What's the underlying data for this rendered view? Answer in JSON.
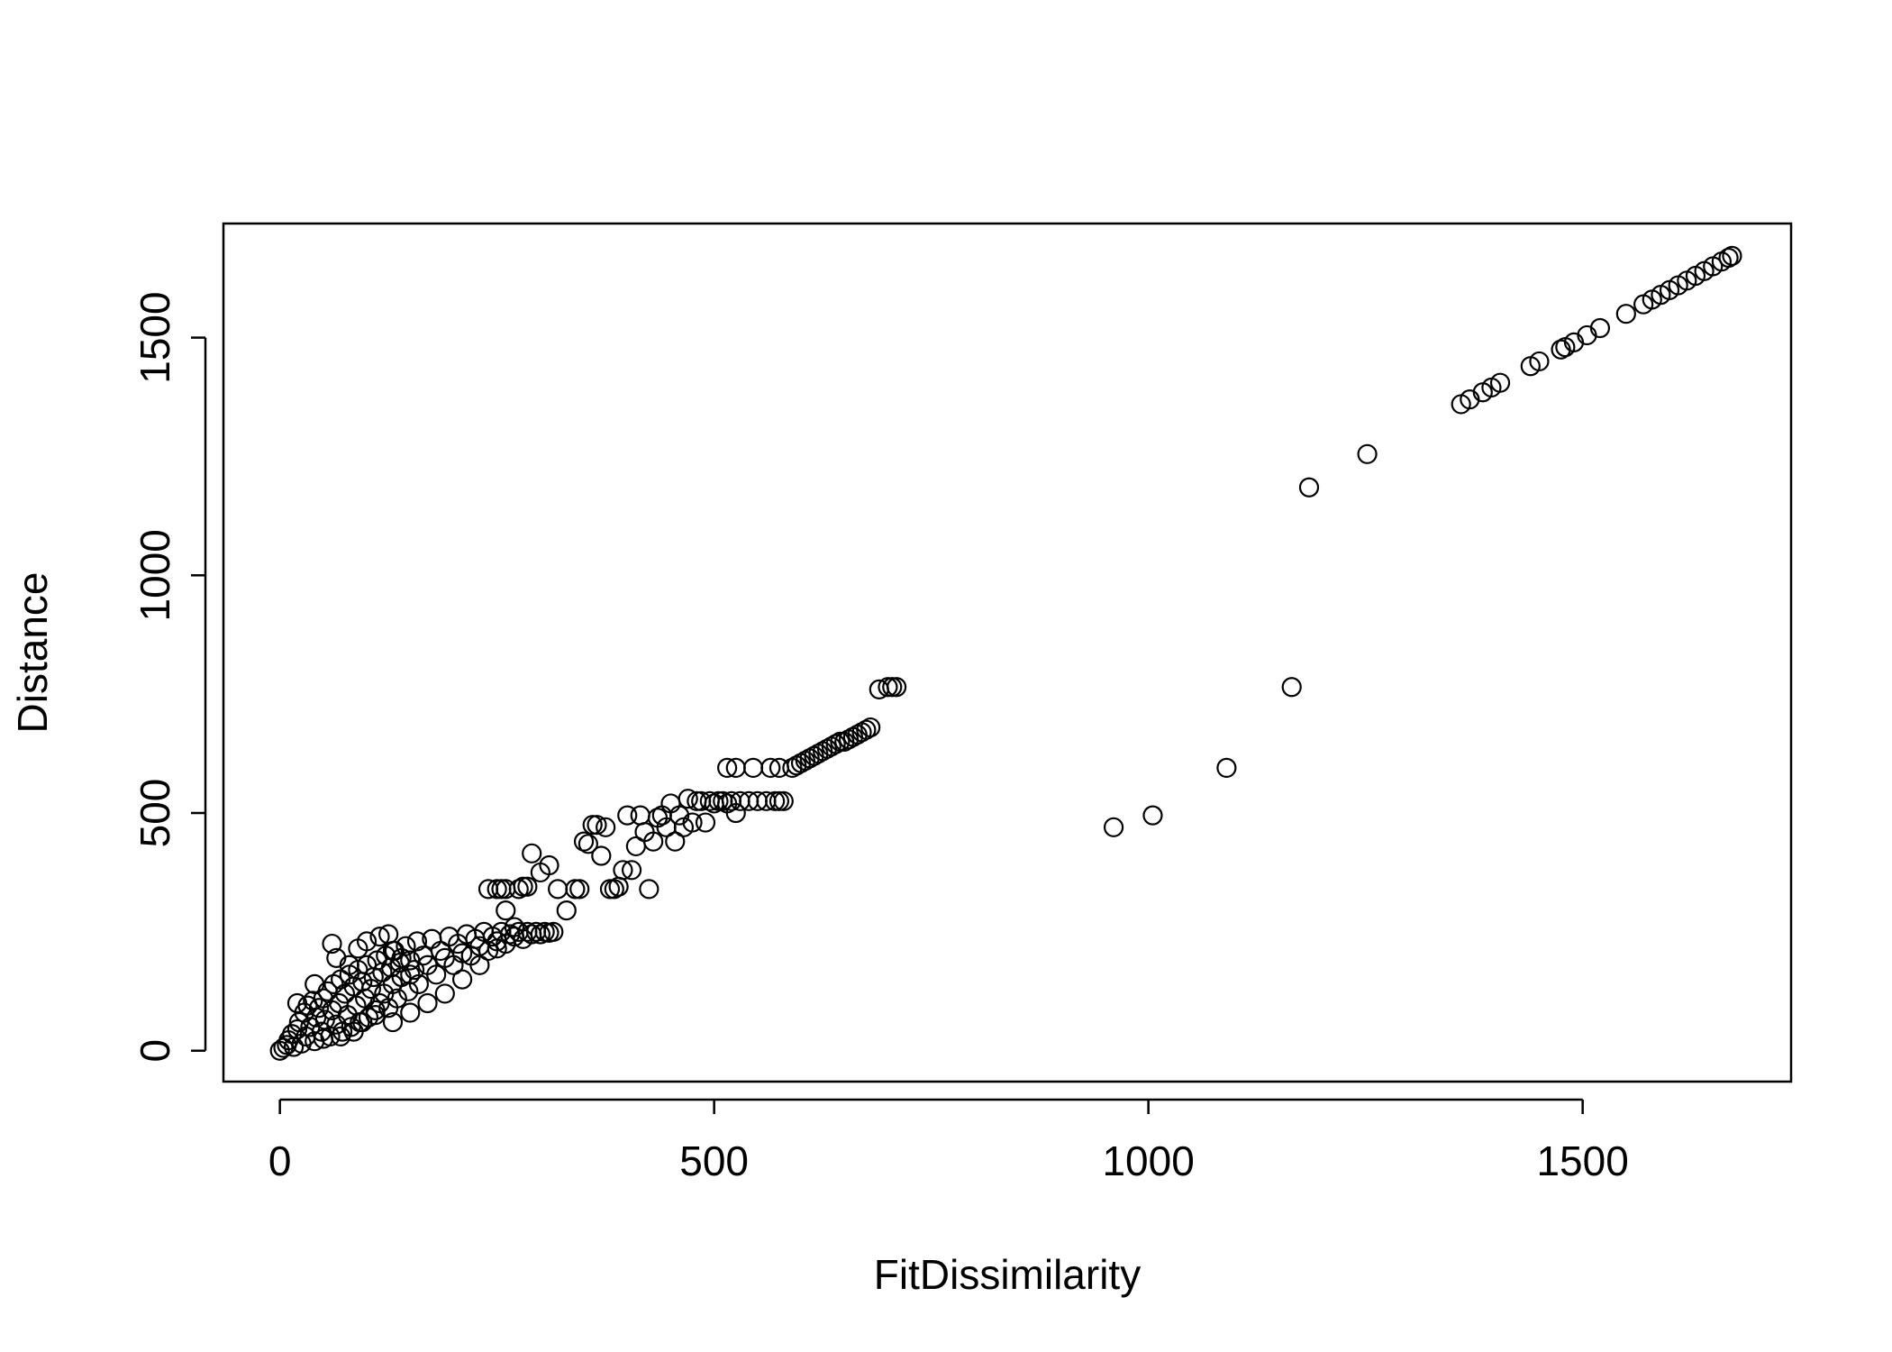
{
  "chart_data": {
    "type": "scatter",
    "title": "",
    "xlabel": "FitDissimilarity",
    "ylabel": "Distance",
    "xlim": [
      -65,
      1740
    ],
    "ylim": [
      -65,
      1740
    ],
    "x_ticks": [
      "0",
      "500",
      "1000",
      "1500"
    ],
    "x_tick_values": [
      0,
      500,
      1000,
      1500
    ],
    "y_ticks": [
      "0",
      "500",
      "1000",
      "1500"
    ],
    "y_tick_values": [
      0,
      500,
      1000,
      1500
    ],
    "grid": false,
    "legend": "none",
    "marker": "open-circle",
    "marker_color": "#000000",
    "points": [
      [
        0,
        0
      ],
      [
        4,
        6
      ],
      [
        8,
        12
      ],
      [
        10,
        22
      ],
      [
        14,
        35
      ],
      [
        16,
        8
      ],
      [
        20,
        45
      ],
      [
        22,
        60
      ],
      [
        25,
        15
      ],
      [
        28,
        80
      ],
      [
        30,
        30
      ],
      [
        32,
        95
      ],
      [
        35,
        50
      ],
      [
        38,
        105
      ],
      [
        40,
        20
      ],
      [
        42,
        70
      ],
      [
        45,
        90
      ],
      [
        48,
        40
      ],
      [
        50,
        110
      ],
      [
        52,
        65
      ],
      [
        55,
        125
      ],
      [
        58,
        30
      ],
      [
        60,
        85
      ],
      [
        62,
        140
      ],
      [
        65,
        55
      ],
      [
        68,
        100
      ],
      [
        70,
        150
      ],
      [
        72,
        40
      ],
      [
        75,
        120
      ],
      [
        78,
        75
      ],
      [
        80,
        160
      ],
      [
        82,
        50
      ],
      [
        85,
        135
      ],
      [
        88,
        95
      ],
      [
        90,
        170
      ],
      [
        92,
        60
      ],
      [
        95,
        145
      ],
      [
        98,
        110
      ],
      [
        100,
        180
      ],
      [
        102,
        70
      ],
      [
        105,
        130
      ],
      [
        108,
        155
      ],
      [
        110,
        85
      ],
      [
        112,
        190
      ],
      [
        115,
        100
      ],
      [
        118,
        165
      ],
      [
        120,
        120
      ],
      [
        122,
        200
      ],
      [
        125,
        90
      ],
      [
        128,
        175
      ],
      [
        130,
        140
      ],
      [
        132,
        210
      ],
      [
        135,
        110
      ],
      [
        138,
        185
      ],
      [
        140,
        155
      ],
      [
        145,
        220
      ],
      [
        148,
        125
      ],
      [
        150,
        190
      ],
      [
        155,
        170
      ],
      [
        158,
        230
      ],
      [
        160,
        140
      ],
      [
        165,
        200
      ],
      [
        170,
        180
      ],
      [
        175,
        235
      ],
      [
        180,
        160
      ],
      [
        185,
        210
      ],
      [
        190,
        195
      ],
      [
        195,
        240
      ],
      [
        200,
        180
      ],
      [
        205,
        225
      ],
      [
        210,
        205
      ],
      [
        215,
        245
      ],
      [
        220,
        200
      ],
      [
        225,
        235
      ],
      [
        230,
        220
      ],
      [
        235,
        250
      ],
      [
        240,
        210
      ],
      [
        245,
        240
      ],
      [
        250,
        230
      ],
      [
        255,
        250
      ],
      [
        260,
        225
      ],
      [
        265,
        245
      ],
      [
        270,
        240
      ],
      [
        275,
        250
      ],
      [
        280,
        235
      ],
      [
        285,
        250
      ],
      [
        290,
        245
      ],
      [
        295,
        250
      ],
      [
        300,
        245
      ],
      [
        305,
        250
      ],
      [
        310,
        248
      ],
      [
        315,
        250
      ],
      [
        20,
        100
      ],
      [
        40,
        140
      ],
      [
        60,
        225
      ],
      [
        65,
        195
      ],
      [
        80,
        180
      ],
      [
        90,
        215
      ],
      [
        100,
        230
      ],
      [
        115,
        240
      ],
      [
        125,
        245
      ],
      [
        130,
        210
      ],
      [
        140,
        195
      ],
      [
        150,
        160
      ],
      [
        95,
        60
      ],
      [
        110,
        75
      ],
      [
        70,
        30
      ],
      [
        50,
        25
      ],
      [
        85,
        40
      ],
      [
        130,
        60
      ],
      [
        150,
        80
      ],
      [
        170,
        100
      ],
      [
        190,
        120
      ],
      [
        210,
        150
      ],
      [
        230,
        180
      ],
      [
        250,
        215
      ],
      [
        260,
        295
      ],
      [
        270,
        260
      ],
      [
        240,
        340
      ],
      [
        250,
        340
      ],
      [
        255,
        340
      ],
      [
        260,
        340
      ],
      [
        275,
        340
      ],
      [
        280,
        345
      ],
      [
        285,
        345
      ],
      [
        290,
        415
      ],
      [
        300,
        375
      ],
      [
        310,
        390
      ],
      [
        320,
        340
      ],
      [
        330,
        295
      ],
      [
        340,
        340
      ],
      [
        345,
        340
      ],
      [
        350,
        440
      ],
      [
        355,
        435
      ],
      [
        360,
        475
      ],
      [
        365,
        475
      ],
      [
        370,
        410
      ],
      [
        375,
        470
      ],
      [
        380,
        340
      ],
      [
        385,
        340
      ],
      [
        390,
        345
      ],
      [
        395,
        380
      ],
      [
        400,
        495
      ],
      [
        405,
        380
      ],
      [
        410,
        430
      ],
      [
        415,
        495
      ],
      [
        420,
        460
      ],
      [
        425,
        340
      ],
      [
        430,
        440
      ],
      [
        435,
        490
      ],
      [
        440,
        495
      ],
      [
        445,
        470
      ],
      [
        450,
        520
      ],
      [
        455,
        440
      ],
      [
        460,
        495
      ],
      [
        465,
        470
      ],
      [
        470,
        530
      ],
      [
        475,
        480
      ],
      [
        480,
        525
      ],
      [
        485,
        525
      ],
      [
        490,
        480
      ],
      [
        495,
        525
      ],
      [
        500,
        520
      ],
      [
        505,
        525
      ],
      [
        510,
        525
      ],
      [
        515,
        520
      ],
      [
        520,
        525
      ],
      [
        525,
        500
      ],
      [
        530,
        525
      ],
      [
        540,
        525
      ],
      [
        550,
        525
      ],
      [
        560,
        525
      ],
      [
        570,
        525
      ],
      [
        575,
        525
      ],
      [
        580,
        525
      ],
      [
        515,
        595
      ],
      [
        525,
        595
      ],
      [
        545,
        595
      ],
      [
        565,
        595
      ],
      [
        575,
        595
      ],
      [
        590,
        595
      ],
      [
        595,
        600
      ],
      [
        600,
        605
      ],
      [
        605,
        610
      ],
      [
        610,
        615
      ],
      [
        615,
        620
      ],
      [
        620,
        625
      ],
      [
        625,
        630
      ],
      [
        630,
        635
      ],
      [
        635,
        640
      ],
      [
        640,
        645
      ],
      [
        645,
        650
      ],
      [
        650,
        650
      ],
      [
        655,
        655
      ],
      [
        660,
        660
      ],
      [
        665,
        665
      ],
      [
        670,
        670
      ],
      [
        675,
        675
      ],
      [
        680,
        680
      ],
      [
        690,
        760
      ],
      [
        700,
        765
      ],
      [
        705,
        765
      ],
      [
        710,
        765
      ],
      [
        960,
        470
      ],
      [
        1005,
        495
      ],
      [
        1090,
        595
      ],
      [
        1165,
        765
      ],
      [
        1185,
        1185
      ],
      [
        1252,
        1255
      ],
      [
        1360,
        1360
      ],
      [
        1370,
        1370
      ],
      [
        1385,
        1385
      ],
      [
        1395,
        1395
      ],
      [
        1405,
        1405
      ],
      [
        1440,
        1440
      ],
      [
        1450,
        1450
      ],
      [
        1475,
        1475
      ],
      [
        1480,
        1480
      ],
      [
        1490,
        1490
      ],
      [
        1505,
        1505
      ],
      [
        1520,
        1520
      ],
      [
        1550,
        1550
      ],
      [
        1570,
        1570
      ],
      [
        1580,
        1580
      ],
      [
        1590,
        1590
      ],
      [
        1600,
        1600
      ],
      [
        1610,
        1610
      ],
      [
        1620,
        1620
      ],
      [
        1630,
        1630
      ],
      [
        1640,
        1640
      ],
      [
        1650,
        1650
      ],
      [
        1660,
        1660
      ],
      [
        1668,
        1668
      ],
      [
        1672,
        1672
      ]
    ]
  }
}
